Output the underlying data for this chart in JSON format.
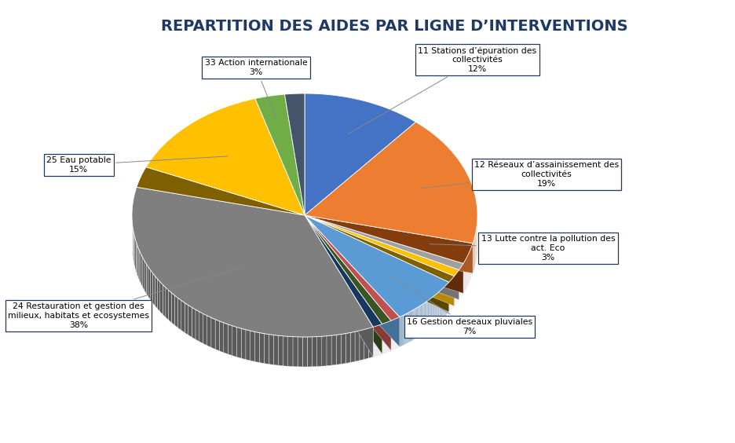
{
  "title": "REPARTITION DES AIDES PAR LIGNE D’INTERVENTIONS",
  "slices": [
    {
      "label": "11 Stations d’épuration des\ncollectivités",
      "pct": 12,
      "color": "#4472C4",
      "dark": "#2E4F8A",
      "show_label": true
    },
    {
      "label": "12 Réseaux d’assainissement des\ncollectivités",
      "pct": 19,
      "color": "#ED7D31",
      "dark": "#A0561F",
      "show_label": true
    },
    {
      "label": "13 Lutte contre la pollution des\nact. Eco",
      "pct": 3,
      "color": "#843C0C",
      "dark": "#5A2808",
      "show_label": true
    },
    {
      "label": "",
      "pct": 1,
      "color": "#A0A0A0",
      "dark": "#707070",
      "show_label": false
    },
    {
      "label": "",
      "pct": 1,
      "color": "#FFC000",
      "dark": "#B08800",
      "show_label": false
    },
    {
      "label": "",
      "pct": 1,
      "color": "#7F6000",
      "dark": "#574200",
      "show_label": false
    },
    {
      "label": "16 Gestion deseaux pluviales",
      "pct": 7,
      "color": "#5B9BD5",
      "dark": "#3A6A9A",
      "show_label": true
    },
    {
      "label": "",
      "pct": 1,
      "color": "#C0504D",
      "dark": "#8A3A38",
      "show_label": false
    },
    {
      "label": "",
      "pct": 1,
      "color": "#375623",
      "dark": "#253B18",
      "show_label": false
    },
    {
      "label": "",
      "pct": 1,
      "color": "#17375E",
      "dark": "#0F2540",
      "show_label": false
    },
    {
      "label": "24 Restauration et gestion des\nmilieux, habitats et ecosystemes",
      "pct": 38,
      "color": "#7F7F7F",
      "dark": "#4A4A4A",
      "show_label": true
    },
    {
      "label": "",
      "pct": 3,
      "color": "#7F6000",
      "dark": "#574200",
      "show_label": false
    },
    {
      "label": "25 Eau potable",
      "pct": 15,
      "color": "#FFC000",
      "dark": "#B08800",
      "show_label": true
    },
    {
      "label": "33 Action internationale",
      "pct": 3,
      "color": "#70AD47",
      "dark": "#4E7930",
      "show_label": true
    },
    {
      "label": "",
      "pct": 2,
      "color": "#44546A",
      "dark": "#2D3A4A",
      "show_label": false
    }
  ],
  "background_color": "#FFFFFF",
  "title_fontsize": 14,
  "label_fontsize": 7.8
}
